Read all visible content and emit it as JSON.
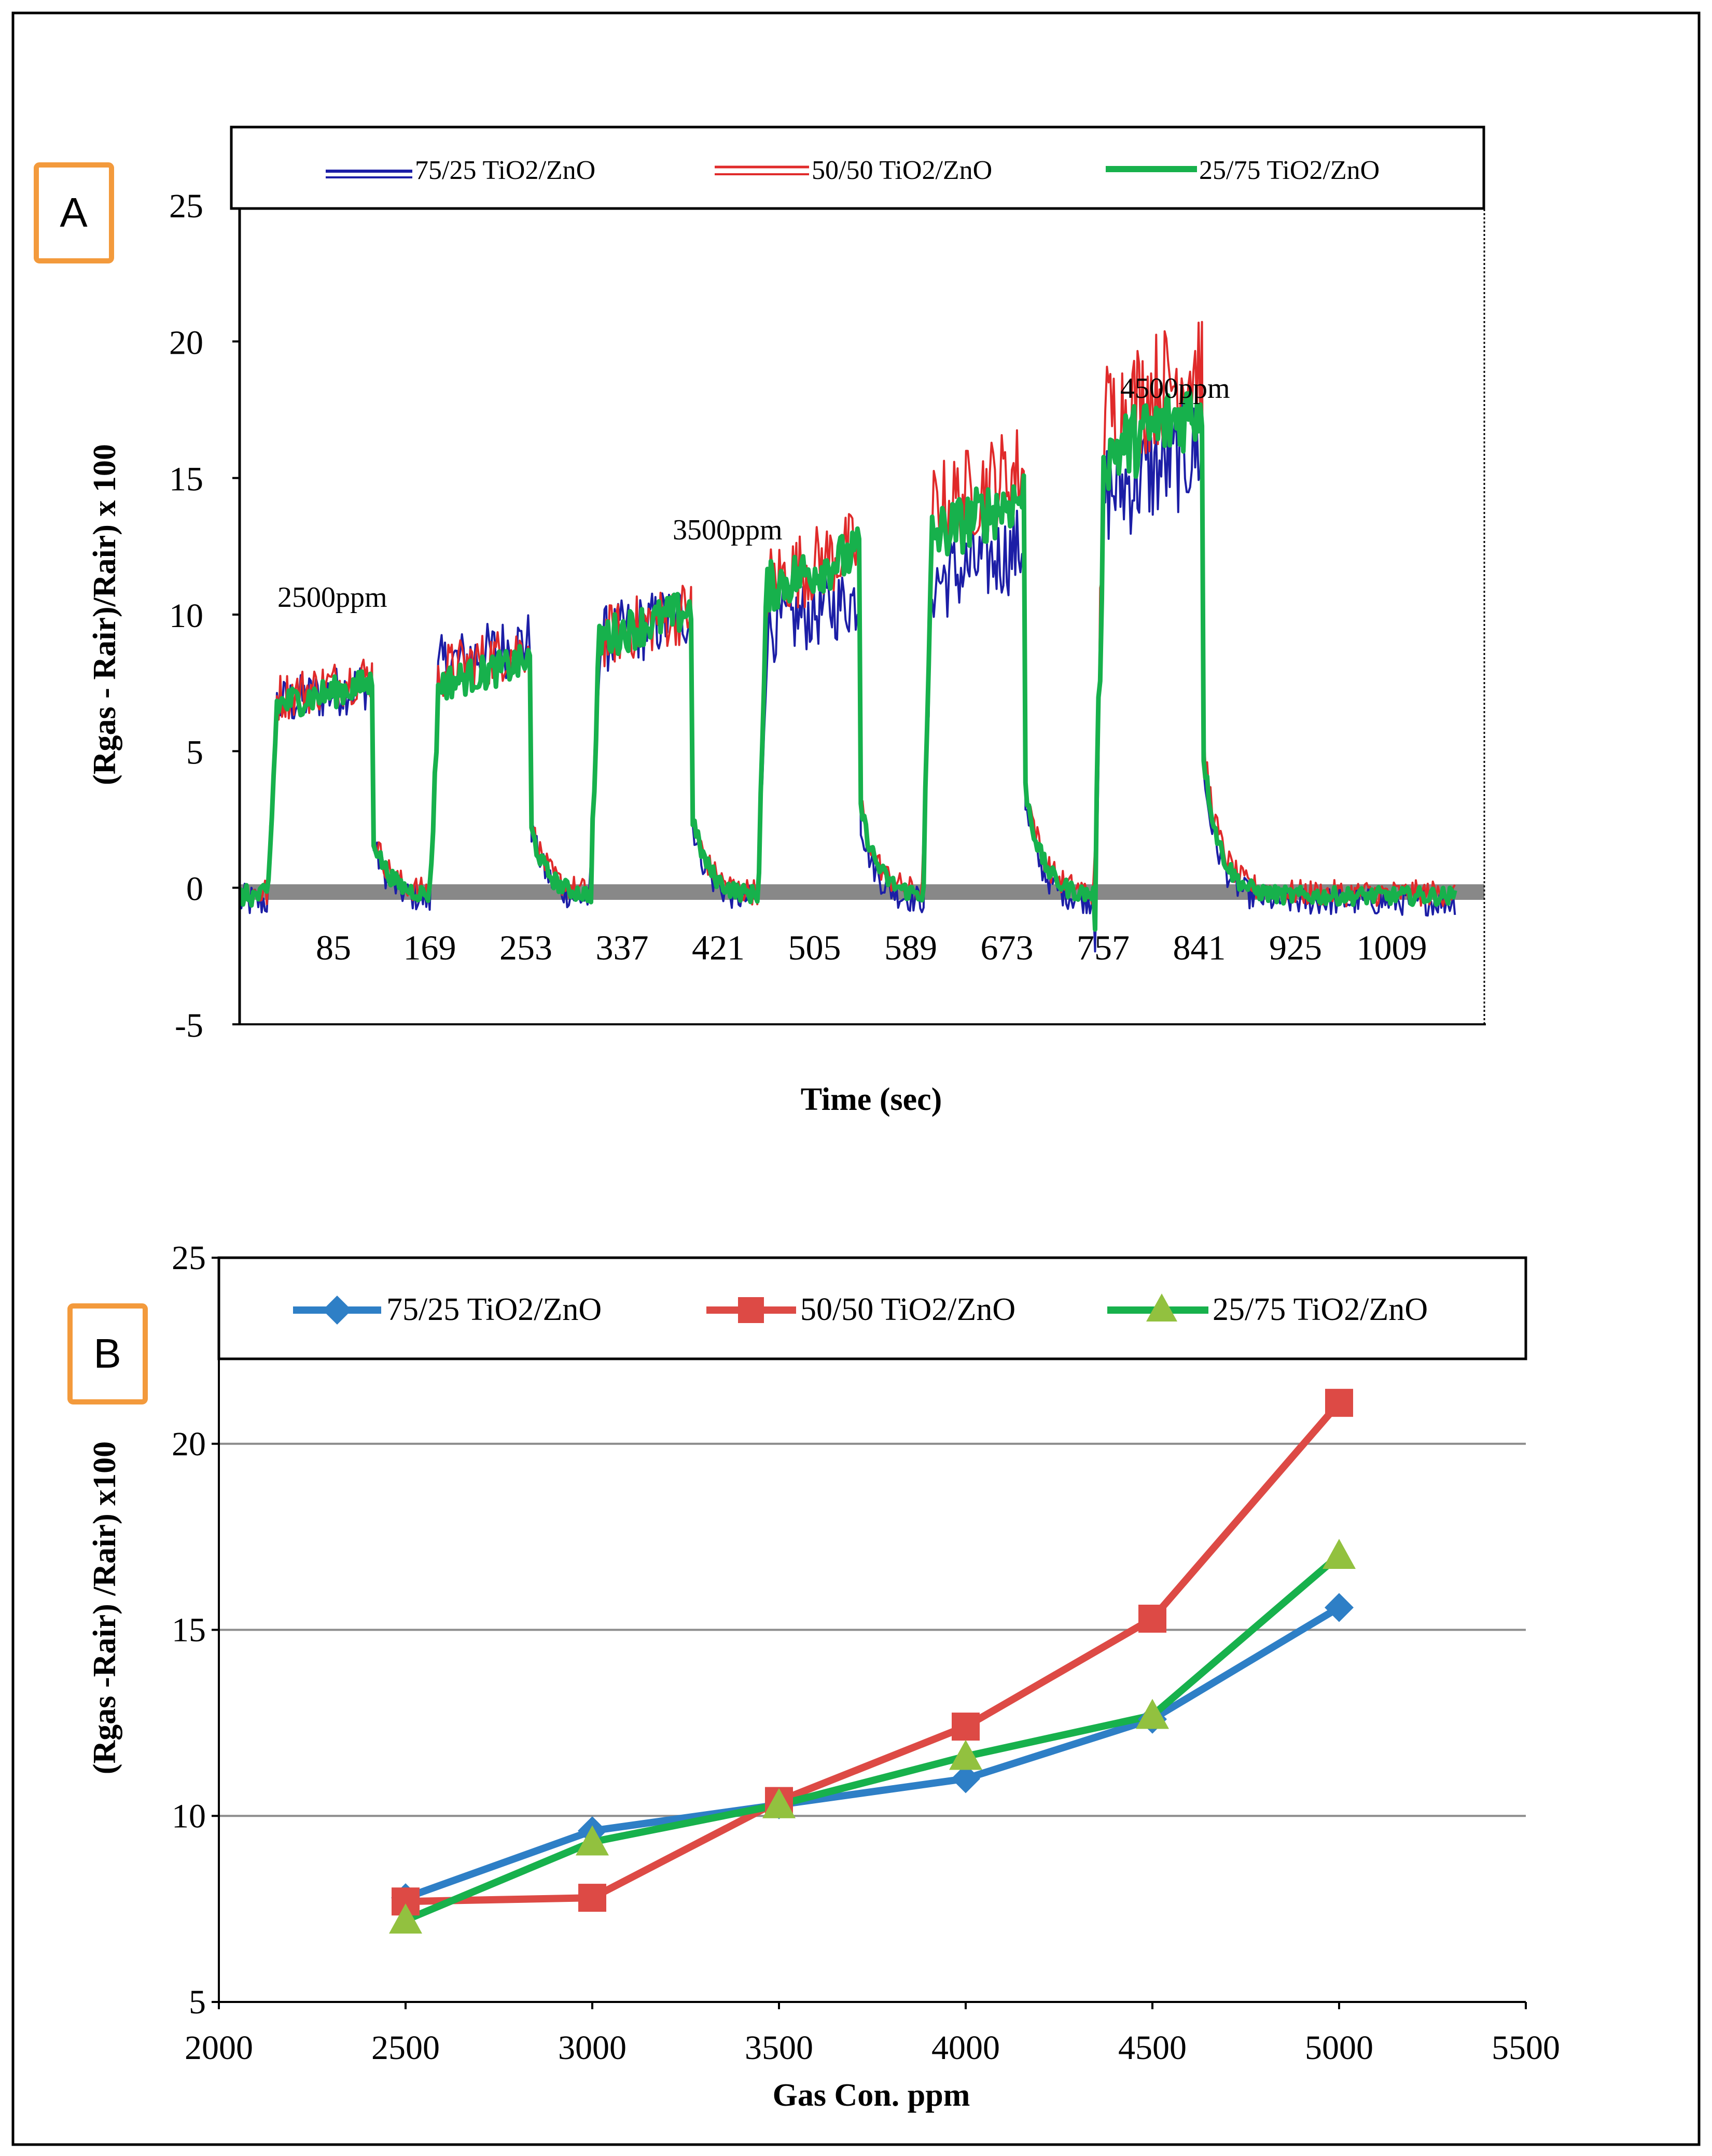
{
  "chart_data": [
    {
      "panel": "A",
      "type": "line",
      "panel_label": "A",
      "title": "",
      "xlabel": "Time (sec)",
      "ylabel": "(Rgas - Rair)/Rair) x 100",
      "ylim": [
        -5,
        25
      ],
      "yticks": [
        "25",
        "20",
        "15",
        "10",
        "5",
        "0",
        "-5"
      ],
      "xticks": [
        "85",
        "169",
        "253",
        "337",
        "421",
        "505",
        "589",
        "673",
        "757",
        "841",
        "925",
        "1009"
      ],
      "legend": [
        "75/25 TiO2/ZnO",
        "50/50 TiO2/ZnO",
        "25/75 TiO2/ZnO"
      ],
      "legend_position": "top",
      "annotations": [
        "2500ppm",
        "3500ppm",
        "4500ppm"
      ],
      "pulses": [
        {
          "on": 25,
          "off": 118,
          "v7525": 7.2,
          "v5050": 7.5,
          "v2575": 7.2
        },
        {
          "on": 168,
          "off": 258,
          "v7525": 8.7,
          "v5050": 8.5,
          "v2575": 8.0
        },
        {
          "on": 310,
          "off": 400,
          "v7525": 9.7,
          "v5050": 9.8,
          "v2575": 9.8
        },
        {
          "on": 458,
          "off": 548,
          "v7525": 10.2,
          "v5050": 12.0,
          "v2575": 11.8
        },
        {
          "on": 604,
          "off": 694,
          "v7525": 12.0,
          "v5050": 14.8,
          "v2575": 13.8
        },
        {
          "on": 756,
          "off": 852,
          "v7525": 15.5,
          "v5050": 18.5,
          "v2575": 17.0
        }
      ],
      "colors": {
        "s7525": "#1c1ea6",
        "s5050": "#e02a2a",
        "s2575": "#17b14c",
        "zero": "#888888"
      }
    },
    {
      "panel": "B",
      "type": "line",
      "panel_label": "B",
      "title": "",
      "xlabel": "Gas Con. ppm",
      "ylabel": "(Rgas -Rair) /Rair) x100",
      "xlim": [
        2000,
        5500
      ],
      "ylim": [
        5,
        25
      ],
      "xticks": [
        "2000",
        "2500",
        "3000",
        "3500",
        "4000",
        "4500",
        "5000",
        "5500"
      ],
      "yticks": [
        "25",
        "20",
        "15",
        "10",
        "5"
      ],
      "x": [
        2500,
        3000,
        3500,
        4000,
        4500,
        5000
      ],
      "series": [
        {
          "name": "75/25 TiO2/ZnO",
          "values": [
            7.8,
            9.6,
            10.3,
            11.0,
            12.6,
            15.6
          ],
          "color": "#2e7fc6",
          "marker": "diamond"
        },
        {
          "name": "50/50 TiO2/ZnO",
          "values": [
            7.7,
            7.8,
            10.4,
            12.4,
            15.3,
            21.1
          ],
          "color": "#dd4a45",
          "marker": "square"
        },
        {
          "name": "25/75 TiO2/ZnO",
          "values": [
            7.2,
            9.3,
            10.3,
            11.6,
            12.7,
            17.0
          ],
          "color": "#17b14c",
          "marker": "triangle"
        }
      ],
      "legend_position": "top",
      "grid": true,
      "marker_colors": {
        "triangle": "#92c13f"
      }
    }
  ]
}
